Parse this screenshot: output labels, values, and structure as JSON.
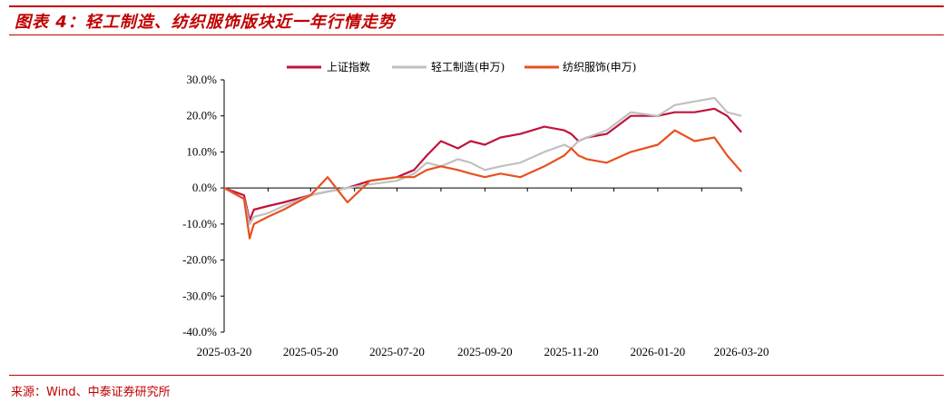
{
  "header": {
    "title": "图表 4：轻工制造、纺织服饰版块近一年行情走势"
  },
  "footer": {
    "source": "来源：Wind、中泰证券研究所"
  },
  "chart_data": {
    "type": "line",
    "xlabel": "",
    "ylabel": "",
    "ylim": [
      -0.4,
      0.3
    ],
    "yticks": [
      "30.0%",
      "20.0%",
      "10.0%",
      "0.0%",
      "-10.0%",
      "-20.0%",
      "-30.0%",
      "-40.0%"
    ],
    "ytick_values": [
      0.3,
      0.2,
      0.1,
      0.0,
      -0.1,
      -0.2,
      -0.3,
      -0.4
    ],
    "xticks": [
      "2025-03-20",
      "2025-05-20",
      "2025-07-20",
      "2025-09-20",
      "2025-11-20",
      "2026-01-20",
      "2026-03-20"
    ],
    "x_range": [
      "2025-03-20",
      "2026-03-20"
    ],
    "legend_position": "top-center",
    "grid": false,
    "series": [
      {
        "name": "上证指数",
        "color": "#c0143c",
        "x": [
          "2025-03-20",
          "2025-04-03",
          "2025-04-07",
          "2025-04-10",
          "2025-04-20",
          "2025-05-01",
          "2025-05-20",
          "2025-06-01",
          "2025-06-15",
          "2025-07-01",
          "2025-07-20",
          "2025-08-01",
          "2025-08-10",
          "2025-08-20",
          "2025-09-01",
          "2025-09-10",
          "2025-09-20",
          "2025-10-01",
          "2025-10-15",
          "2025-11-01",
          "2025-11-15",
          "2025-11-20",
          "2025-11-25",
          "2025-12-01",
          "2025-12-15",
          "2026-01-01",
          "2026-01-20",
          "2026-02-01",
          "2026-02-15",
          "2026-03-01",
          "2026-03-10",
          "2026-03-20"
        ],
        "values": [
          0.0,
          -0.02,
          -0.09,
          -0.06,
          -0.05,
          -0.04,
          -0.02,
          -0.01,
          0.0,
          0.02,
          0.03,
          0.05,
          0.09,
          0.13,
          0.11,
          0.13,
          0.12,
          0.14,
          0.15,
          0.17,
          0.16,
          0.15,
          0.13,
          0.14,
          0.15,
          0.2,
          0.2,
          0.21,
          0.21,
          0.22,
          0.2,
          0.155
        ]
      },
      {
        "name": "轻工制造(申万)",
        "color": "#c0c0c0",
        "x": [
          "2025-03-20",
          "2025-04-03",
          "2025-04-07",
          "2025-04-10",
          "2025-04-20",
          "2025-05-01",
          "2025-05-20",
          "2025-06-01",
          "2025-06-15",
          "2025-07-01",
          "2025-07-20",
          "2025-08-01",
          "2025-08-10",
          "2025-08-20",
          "2025-09-01",
          "2025-09-10",
          "2025-09-20",
          "2025-10-01",
          "2025-10-15",
          "2025-11-01",
          "2025-11-15",
          "2025-11-20",
          "2025-11-25",
          "2025-12-01",
          "2025-12-15",
          "2026-01-01",
          "2026-01-20",
          "2026-02-01",
          "2026-02-15",
          "2026-03-01",
          "2026-03-10",
          "2026-03-20"
        ],
        "values": [
          0.0,
          -0.03,
          -0.1,
          -0.08,
          -0.07,
          -0.05,
          -0.02,
          -0.01,
          0.0,
          0.01,
          0.02,
          0.04,
          0.07,
          0.06,
          0.08,
          0.07,
          0.05,
          0.06,
          0.07,
          0.1,
          0.12,
          0.11,
          0.13,
          0.14,
          0.16,
          0.21,
          0.2,
          0.23,
          0.24,
          0.25,
          0.21,
          0.2
        ]
      },
      {
        "name": "纺织服饰(申万)",
        "color": "#e8501e",
        "x": [
          "2025-03-20",
          "2025-04-03",
          "2025-04-07",
          "2025-04-10",
          "2025-04-20",
          "2025-05-01",
          "2025-05-20",
          "2025-06-01",
          "2025-06-15",
          "2025-07-01",
          "2025-07-20",
          "2025-08-01",
          "2025-08-10",
          "2025-08-20",
          "2025-09-01",
          "2025-09-10",
          "2025-09-20",
          "2025-10-01",
          "2025-10-15",
          "2025-11-01",
          "2025-11-15",
          "2025-11-20",
          "2025-11-25",
          "2025-12-01",
          "2025-12-15",
          "2026-01-01",
          "2026-01-20",
          "2026-02-01",
          "2026-02-15",
          "2026-03-01",
          "2026-03-10",
          "2026-03-20"
        ],
        "values": [
          0.0,
          -0.03,
          -0.14,
          -0.1,
          -0.08,
          -0.06,
          -0.02,
          0.03,
          -0.04,
          0.02,
          0.03,
          0.03,
          0.05,
          0.06,
          0.05,
          0.04,
          0.03,
          0.04,
          0.03,
          0.06,
          0.09,
          0.11,
          0.09,
          0.08,
          0.07,
          0.1,
          0.12,
          0.16,
          0.13,
          0.14,
          0.09,
          0.045
        ]
      }
    ]
  }
}
